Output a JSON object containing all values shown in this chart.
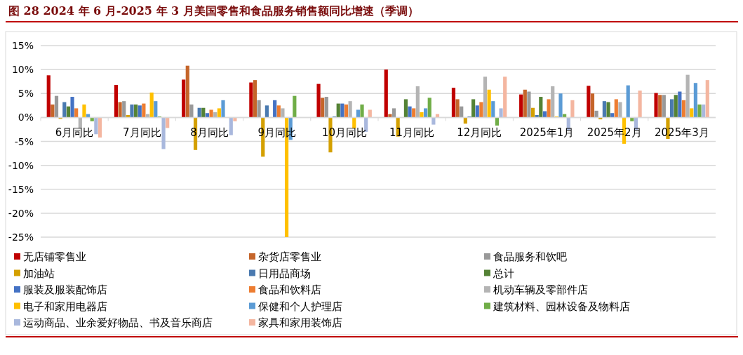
{
  "chart_data": {
    "type": "bar",
    "title": "图 28    2024 年 6 月-2025 年 3 月美国零售和食品服务销售额同比增速（季调）",
    "categories": [
      "6月同比",
      "7月同比",
      "8月同比",
      "9月同比",
      "10月同比",
      "11月同比",
      "12月同比",
      "2025年1月",
      "2025年2月",
      "2025年3月"
    ],
    "ylim": [
      -25,
      15
    ],
    "yticks": [
      {
        "value": -25,
        "label": "-25%"
      },
      {
        "value": -20,
        "label": "-20%"
      },
      {
        "value": -15,
        "label": "-15%"
      },
      {
        "value": -10,
        "label": "-10%"
      },
      {
        "value": -5,
        "label": "-5%"
      },
      {
        "value": 0,
        "label": "0%"
      },
      {
        "value": 5,
        "label": "5%"
      },
      {
        "value": 10,
        "label": "10%"
      },
      {
        "value": 15,
        "label": "15%"
      }
    ],
    "grid": "y",
    "legend": "bottom",
    "series": [
      {
        "name": "无店铺零售业",
        "color": "#c00000",
        "values": [
          8.8,
          6.8,
          7.9,
          7.3,
          7.0,
          10.0,
          6.2,
          4.8,
          6.6,
          5.1
        ]
      },
      {
        "name": "杂货店零售业",
        "color": "#c5652a",
        "values": [
          2.7,
          3.2,
          10.8,
          7.8,
          4.1,
          0.7,
          3.8,
          5.8,
          5.0,
          4.7
        ]
      },
      {
        "name": "食品服务和饮吧",
        "color": "#999999",
        "values": [
          4.5,
          3.4,
          2.7,
          3.6,
          4.3,
          1.9,
          2.3,
          5.4,
          1.4,
          4.7
        ]
      },
      {
        "name": "加油站",
        "color": "#d4a000",
        "values": [
          -0.3,
          0.5,
          -6.8,
          -8.2,
          -7.3,
          -4.0,
          -1.3,
          2.0,
          -0.4,
          -4.5
        ]
      },
      {
        "name": "日用品商场",
        "color": "#4a7ab0",
        "values": [
          3.2,
          2.7,
          2.0,
          2.5,
          0.2,
          0.0,
          0.2,
          0.5,
          3.4,
          3.8
        ]
      },
      {
        "name": "总计",
        "color": "#548235",
        "values": [
          2.3,
          2.7,
          2.0,
          0.0,
          2.9,
          3.8,
          3.8,
          4.3,
          3.2,
          4.7
        ]
      },
      {
        "name": "服装及服装配饰店",
        "color": "#4472c4",
        "values": [
          4.3,
          2.5,
          0.9,
          3.6,
          2.9,
          2.3,
          2.5,
          1.3,
          0.9,
          5.4
        ]
      },
      {
        "name": "食品和饮料店",
        "color": "#ed7d31",
        "values": [
          1.9,
          2.9,
          1.6,
          2.5,
          2.7,
          1.9,
          3.2,
          3.8,
          3.8,
          3.6
        ]
      },
      {
        "name": "机动车辆及零部件店",
        "color": "#b4b4b4",
        "values": [
          -2.3,
          0.7,
          1.1,
          1.9,
          3.4,
          6.5,
          8.5,
          6.5,
          3.2,
          8.9
        ]
      },
      {
        "name": "电子和家用电器店",
        "color": "#ffc000",
        "values": [
          2.7,
          5.2,
          1.9,
          -25,
          -2.3,
          1.1,
          5.8,
          0.2,
          -5.5,
          1.9
        ]
      },
      {
        "name": "保健和个人护理店",
        "color": "#5b9bd5",
        "values": [
          0.7,
          3.4,
          3.6,
          -4.7,
          1.6,
          1.9,
          3.4,
          5.0,
          6.7,
          7.2
        ]
      },
      {
        "name": "建筑材料、园林设备及物料店",
        "color": "#70ad47",
        "values": [
          -0.8,
          0.2,
          null,
          4.5,
          2.7,
          4.1,
          -1.7,
          0.7,
          -0.8,
          2.7
        ]
      },
      {
        "name": "运动商品、业余爱好物品、书及音乐商店",
        "color": "#a9b8dd",
        "values": [
          -3.5,
          -6.6,
          -3.7,
          null,
          -3.0,
          -1.5,
          1.9,
          -2.6,
          -2.6,
          2.7
        ]
      },
      {
        "name": "家具和家用装饰店",
        "color": "#f4b6a0",
        "values": [
          -4.2,
          -2.2,
          -0.8,
          null,
          1.6,
          0.7,
          8.5,
          3.6,
          5.6,
          7.8
        ]
      }
    ]
  }
}
